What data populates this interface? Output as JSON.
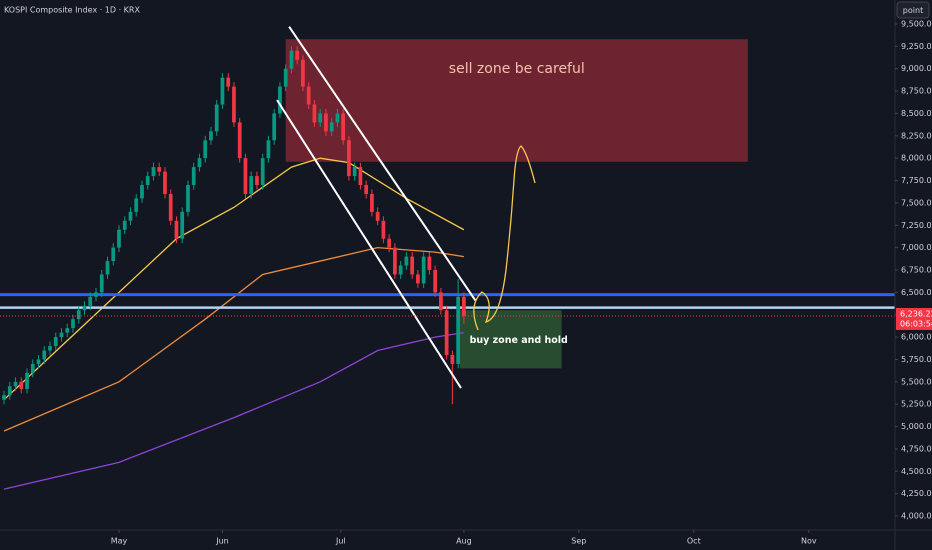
{
  "chart_data": {
    "type": "candlestick",
    "title": "KOSPI Composite Index · 1D · KRX",
    "button": "point",
    "up_color": "#089981",
    "down_color": "#f23645",
    "series": {
      "open": [
        5300,
        5350,
        5450,
        5500,
        5420,
        5600,
        5700,
        5750,
        5850,
        5900,
        6000,
        6050,
        6100,
        6200,
        6300,
        6350,
        6450,
        6500,
        6700,
        6850,
        7000,
        7200,
        7300,
        7400,
        7550,
        7700,
        7800,
        7900,
        7850,
        7600,
        7300,
        7100,
        7400,
        7700,
        7900,
        8000,
        8200,
        8300,
        8600,
        8900,
        8800,
        8400,
        8000,
        7600,
        7800,
        7700,
        8000,
        8200,
        8500,
        8800,
        9000,
        9200,
        9100,
        8800,
        8600,
        8400,
        8500,
        8300,
        8400,
        8500,
        8200,
        7800,
        7900,
        7700,
        7600,
        7400,
        7300,
        7100,
        7000,
        6700,
        6800,
        6900,
        6700,
        6600,
        6900,
        6750,
        6500,
        6300,
        5800,
        5700,
        6450
      ],
      "high": [
        5400,
        5500,
        5550,
        5550,
        5650,
        5750,
        5800,
        5900,
        5950,
        6050,
        6100,
        6150,
        6250,
        6350,
        6400,
        6500,
        6550,
        6750,
        6900,
        7050,
        7250,
        7350,
        7450,
        7600,
        7750,
        7850,
        7950,
        7950,
        7900,
        7650,
        7350,
        7450,
        7750,
        7950,
        8050,
        8250,
        8350,
        8650,
        8950,
        8950,
        8850,
        8450,
        8050,
        7850,
        7850,
        8050,
        8250,
        8550,
        8850,
        9050,
        9250,
        9250,
        9150,
        8850,
        8650,
        8550,
        8550,
        8450,
        8550,
        8550,
        8250,
        7950,
        7950,
        7750,
        7650,
        7450,
        7350,
        7150,
        7050,
        6850,
        6950,
        6950,
        6750,
        6950,
        6950,
        6800,
        6550,
        6350,
        5850,
        6650,
        6500
      ],
      "low": [
        5250,
        5300,
        5400,
        5370,
        5370,
        5550,
        5650,
        5700,
        5800,
        5850,
        5950,
        6000,
        6050,
        6150,
        6250,
        6300,
        6400,
        6450,
        6650,
        6800,
        6950,
        7150,
        7250,
        7350,
        7500,
        7650,
        7750,
        7800,
        7550,
        7250,
        7050,
        7050,
        7350,
        7650,
        7850,
        7950,
        8150,
        8250,
        8550,
        8750,
        8350,
        7950,
        7550,
        7550,
        7650,
        7650,
        7950,
        8150,
        8450,
        8750,
        8950,
        9050,
        8750,
        8550,
        8350,
        8350,
        8250,
        8250,
        8350,
        8150,
        7750,
        7750,
        7650,
        7550,
        7350,
        7250,
        7050,
        6950,
        6650,
        6650,
        6750,
        6650,
        6550,
        6550,
        6700,
        6450,
        6250,
        5750,
        5250,
        5650,
        6150
      ],
      "close": [
        5350,
        5450,
        5500,
        5420,
        5600,
        5700,
        5750,
        5850,
        5900,
        6000,
        6050,
        6100,
        6200,
        6300,
        6350,
        6450,
        6500,
        6700,
        6850,
        7000,
        7200,
        7300,
        7400,
        7550,
        7700,
        7800,
        7900,
        7850,
        7600,
        7300,
        7100,
        7400,
        7700,
        7900,
        8000,
        8200,
        8300,
        8600,
        8900,
        8800,
        8400,
        8000,
        7600,
        7800,
        7700,
        8000,
        8200,
        8500,
        8800,
        9000,
        9200,
        9100,
        8800,
        8600,
        8400,
        8500,
        8300,
        8400,
        8500,
        8200,
        7800,
        7900,
        7700,
        7600,
        7400,
        7300,
        7100,
        7000,
        6700,
        6800,
        6900,
        6700,
        6600,
        6900,
        6750,
        6500,
        6300,
        5800,
        5700,
        6450,
        6236.23
      ]
    },
    "overlays": [
      {
        "color": "#f7c948",
        "x": [
          0,
          10,
          20,
          30,
          40,
          50,
          55,
          60,
          70,
          80
        ],
        "values": [
          5300,
          5900,
          6500,
          7100,
          7450,
          7900,
          8000,
          7950,
          7550,
          7200
        ]
      },
      {
        "color": "#f28c38",
        "x": [
          0,
          20,
          35,
          45,
          55,
          65,
          75,
          80
        ],
        "values": [
          4950,
          5500,
          6200,
          6700,
          6850,
          7000,
          6950,
          6900
        ]
      },
      {
        "color": "#8e44d6",
        "x": [
          0,
          20,
          40,
          55,
          65,
          75,
          80
        ],
        "values": [
          4300,
          4600,
          5100,
          5500,
          5850,
          6000,
          6050
        ]
      }
    ],
    "zones": [
      {
        "label": "sell zone be careful",
        "color": "#8e2a35",
        "x": [
          49,
          129.4
        ],
        "range": [
          7960,
          9330
        ]
      },
      {
        "label": "buy zone and hold",
        "color": "#2d5a34",
        "x": [
          79.3,
          97
        ],
        "range": [
          5650,
          6300
        ]
      }
    ],
    "trendlines": [
      {
        "x": [
          49.6,
          82
        ],
        "values": [
          9470,
          6410
        ]
      },
      {
        "x": [
          47.5,
          79.5
        ],
        "values": [
          8650,
          5430
        ]
      }
    ],
    "levels": [
      {
        "value": 6475,
        "color": "#2962ff"
      },
      {
        "value": 6330,
        "color": "#b2d4f5"
      }
    ],
    "last_price": {
      "value": 6236.23,
      "label": "6,236.23"
    },
    "countdown": "06:03:54",
    "xlim": [
      -0.7,
      155
    ],
    "ylim": [
      4000,
      9500
    ],
    "xticks": [
      {
        "value": 20,
        "label": "May"
      },
      {
        "value": 38,
        "label": "Jun"
      },
      {
        "value": 58.6,
        "label": "Jul"
      },
      {
        "value": 80,
        "label": "Aug"
      },
      {
        "value": 100,
        "label": "Sep"
      },
      {
        "value": 120,
        "label": "Oct"
      },
      {
        "value": 140,
        "label": "Nov"
      }
    ],
    "yticks": [
      {
        "value": 4000,
        "label": "4,000.00"
      },
      {
        "value": 4250,
        "label": "4,250.00"
      },
      {
        "value": 4500,
        "label": "4,500.00"
      },
      {
        "value": 4750,
        "label": "4,750.00"
      },
      {
        "value": 5000,
        "label": "5,000.00"
      },
      {
        "value": 5250,
        "label": "5,250.00"
      },
      {
        "value": 5500,
        "label": "5,500.00"
      },
      {
        "value": 5750,
        "label": "5,750.00"
      },
      {
        "value": 6000,
        "label": "6,000.00"
      },
      {
        "value": 6250,
        "label": "6,250.00"
      },
      {
        "value": 6500,
        "label": "6,500.00"
      },
      {
        "value": 6750,
        "label": "6,750.00"
      },
      {
        "value": 7000,
        "label": "7,000.00"
      },
      {
        "value": 7250,
        "label": "7,250.00"
      },
      {
        "value": 7500,
        "label": "7,500.00"
      },
      {
        "value": 7750,
        "label": "7,750.00"
      },
      {
        "value": 8000,
        "label": "8,000.00"
      },
      {
        "value": 8250,
        "label": "8,250.00"
      },
      {
        "value": 8500,
        "label": "8,500.00"
      },
      {
        "value": 8750,
        "label": "8,750.00"
      },
      {
        "value": 9000,
        "label": "9,000.00"
      },
      {
        "value": 9250,
        "label": "9,250.00"
      },
      {
        "value": 9500,
        "label": "9,500.00"
      }
    ],
    "grid": false
  }
}
